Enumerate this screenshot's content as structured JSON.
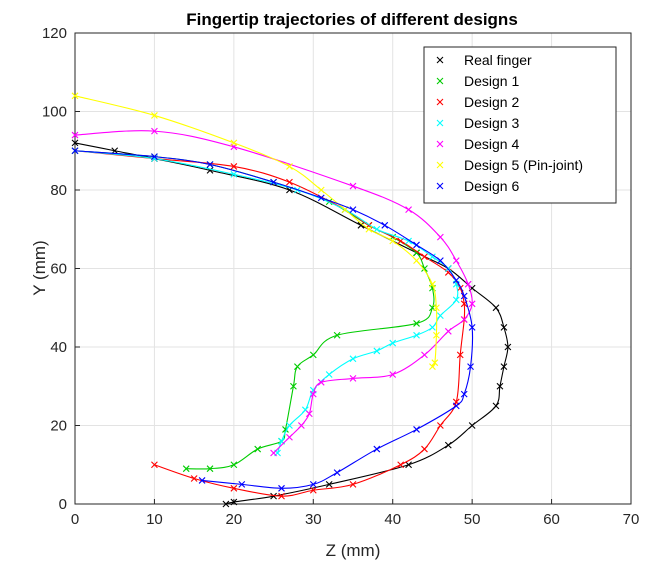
{
  "chart_data": {
    "type": "line",
    "title": "Fingertip trajectories of different designs",
    "xlabel": "Z (mm)",
    "ylabel": "Y (mm)",
    "xlim": [
      0,
      70
    ],
    "ylim": [
      0,
      120
    ],
    "xticks": [
      0,
      10,
      20,
      30,
      40,
      50,
      60,
      70
    ],
    "yticks": [
      0,
      20,
      40,
      60,
      80,
      100,
      120
    ],
    "grid": true,
    "legend_position": "top-right",
    "marker": "x",
    "series": [
      {
        "name": "Real finger",
        "color": "#000000",
        "points": [
          [
            0,
            92
          ],
          [
            5,
            90
          ],
          [
            10,
            88
          ],
          [
            17,
            85
          ],
          [
            27,
            80
          ],
          [
            36,
            71
          ],
          [
            43,
            64
          ],
          [
            47,
            60
          ],
          [
            50,
            55
          ],
          [
            53,
            50
          ],
          [
            54,
            45
          ],
          [
            54.5,
            40
          ],
          [
            54,
            35
          ],
          [
            53.5,
            30
          ],
          [
            53,
            25
          ],
          [
            50,
            20
          ],
          [
            47,
            15
          ],
          [
            42,
            10
          ],
          [
            32,
            5
          ],
          [
            25,
            2
          ],
          [
            20,
            0.5
          ],
          [
            19,
            0
          ]
        ]
      },
      {
        "name": "Design 1",
        "color": "#00cc00",
        "points": [
          [
            0,
            90
          ],
          [
            10,
            88.5
          ],
          [
            17,
            86.5
          ],
          [
            25,
            82
          ],
          [
            32,
            77
          ],
          [
            37,
            71
          ],
          [
            40,
            68
          ],
          [
            43,
            64
          ],
          [
            44,
            60
          ],
          [
            45,
            55
          ],
          [
            45,
            50
          ],
          [
            43,
            46
          ],
          [
            33,
            43
          ],
          [
            30,
            38
          ],
          [
            28,
            35
          ],
          [
            27.5,
            30
          ],
          [
            26.5,
            19
          ],
          [
            26,
            16
          ],
          [
            23,
            14
          ],
          [
            20,
            10
          ],
          [
            17,
            9
          ],
          [
            14,
            9
          ]
        ]
      },
      {
        "name": "Design 2",
        "color": "#ff0000",
        "points": [
          [
            0,
            90
          ],
          [
            10,
            88
          ],
          [
            20,
            86
          ],
          [
            27,
            82
          ],
          [
            34,
            75
          ],
          [
            37,
            71
          ],
          [
            41,
            67
          ],
          [
            44,
            63
          ],
          [
            47,
            59
          ],
          [
            48.5,
            55
          ],
          [
            49,
            51
          ],
          [
            49,
            47
          ],
          [
            48.5,
            38
          ],
          [
            48,
            26
          ],
          [
            46,
            20
          ],
          [
            44,
            14
          ],
          [
            41,
            10
          ],
          [
            35,
            5
          ],
          [
            30,
            3.5
          ],
          [
            26,
            2
          ],
          [
            20,
            4
          ],
          [
            15,
            6.5
          ],
          [
            10,
            10
          ]
        ]
      },
      {
        "name": "Design 3",
        "color": "#00ffff",
        "points": [
          [
            0,
            90
          ],
          [
            10,
            88
          ],
          [
            20,
            84
          ],
          [
            28,
            80
          ],
          [
            34,
            75
          ],
          [
            38,
            70
          ],
          [
            42,
            67
          ],
          [
            45,
            63
          ],
          [
            47,
            60
          ],
          [
            48,
            56
          ],
          [
            48,
            52
          ],
          [
            46,
            48
          ],
          [
            45,
            45
          ],
          [
            43,
            43
          ],
          [
            40,
            41
          ],
          [
            38,
            39
          ],
          [
            35,
            37
          ],
          [
            32,
            33
          ],
          [
            30,
            29
          ],
          [
            29,
            24
          ],
          [
            27,
            20
          ],
          [
            26,
            16
          ],
          [
            25.5,
            13
          ]
        ]
      },
      {
        "name": "Design 4",
        "color": "#ff00ff",
        "points": [
          [
            0,
            94
          ],
          [
            10,
            95
          ],
          [
            20,
            91
          ],
          [
            35,
            81
          ],
          [
            42,
            75
          ],
          [
            46,
            68
          ],
          [
            48,
            62
          ],
          [
            49.5,
            56
          ],
          [
            50,
            51
          ],
          [
            49,
            47
          ],
          [
            47,
            44
          ],
          [
            44,
            38
          ],
          [
            40,
            33
          ],
          [
            35,
            32
          ],
          [
            31,
            31
          ],
          [
            30,
            28
          ],
          [
            29.5,
            23
          ],
          [
            28.5,
            20
          ],
          [
            27,
            17
          ],
          [
            25,
            13
          ]
        ]
      },
      {
        "name": "Design 5 (Pin-joint)",
        "color": "#ffff00",
        "points": [
          [
            0,
            104
          ],
          [
            10,
            99
          ],
          [
            20,
            92
          ],
          [
            27,
            86
          ],
          [
            31,
            80
          ],
          [
            34,
            75
          ],
          [
            37,
            70
          ],
          [
            40,
            67
          ],
          [
            43,
            62
          ],
          [
            45,
            56
          ],
          [
            45.5,
            50
          ],
          [
            45.5,
            43
          ],
          [
            45.3,
            36
          ],
          [
            45,
            35
          ]
        ]
      },
      {
        "name": "Design 6",
        "color": "#0000ff",
        "points": [
          [
            0,
            90
          ],
          [
            10,
            88.5
          ],
          [
            17,
            86.5
          ],
          [
            25,
            82
          ],
          [
            31,
            78
          ],
          [
            35,
            75
          ],
          [
            39,
            71
          ],
          [
            43,
            66
          ],
          [
            46,
            62
          ],
          [
            48,
            57
          ],
          [
            49,
            53
          ],
          [
            50,
            45
          ],
          [
            49.8,
            35
          ],
          [
            49,
            28
          ],
          [
            48,
            25
          ],
          [
            43,
            19
          ],
          [
            38,
            14
          ],
          [
            33,
            8
          ],
          [
            30,
            5
          ],
          [
            26,
            4
          ],
          [
            21,
            5
          ],
          [
            16,
            6
          ]
        ]
      }
    ]
  }
}
